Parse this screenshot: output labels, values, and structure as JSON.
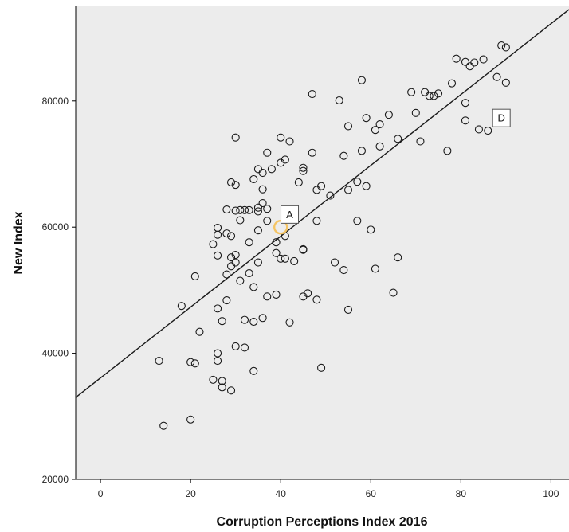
{
  "chart_data": {
    "type": "scatter",
    "title": "",
    "xlabel": "Corruption Perceptions Index 2016",
    "ylabel": "New Index",
    "xlim": [
      -5.5,
      104
    ],
    "ylim": [
      20000,
      95000
    ],
    "x_ticks": [
      0,
      20,
      40,
      60,
      80,
      100
    ],
    "y_ticks": [
      20000,
      40000,
      60000,
      80000
    ],
    "x_tick_labels": [
      "0",
      "20",
      "40",
      "60",
      "80",
      "100"
    ],
    "y_tick_labels": [
      "20000",
      "40000",
      "60000",
      "80000"
    ],
    "grid": false,
    "plot_background": "#ececec",
    "marker_color": "#1a1a1a",
    "highlight_color": "#f5c463",
    "fit_line": {
      "x": [
        -5.5,
        104
      ],
      "y": [
        33000,
        94500
      ],
      "color": "#1a1a1a"
    },
    "highlight_point": {
      "x": 40,
      "y": 60000
    },
    "annotations": [
      {
        "label": "A",
        "x": 42,
        "y": 62000
      },
      {
        "label": "D",
        "x": 89,
        "y": 77300
      }
    ],
    "points": [
      [
        13,
        38800
      ],
      [
        14,
        28500
      ],
      [
        18,
        47500
      ],
      [
        20,
        29500
      ],
      [
        20,
        38600
      ],
      [
        21,
        38400
      ],
      [
        21,
        52200
      ],
      [
        22,
        43400
      ],
      [
        25,
        35800
      ],
      [
        25,
        57300
      ],
      [
        26,
        40000
      ],
      [
        26,
        38800
      ],
      [
        26,
        47100
      ],
      [
        26,
        55500
      ],
      [
        26,
        58800
      ],
      [
        26,
        59900
      ],
      [
        27,
        35600
      ],
      [
        27,
        34600
      ],
      [
        27,
        45100
      ],
      [
        28,
        48400
      ],
      [
        28,
        52500
      ],
      [
        28,
        59000
      ],
      [
        28,
        62800
      ],
      [
        29,
        34100
      ],
      [
        29,
        53800
      ],
      [
        29,
        55200
      ],
      [
        29,
        58600
      ],
      [
        29,
        67100
      ],
      [
        30,
        41100
      ],
      [
        30,
        54400
      ],
      [
        30,
        55600
      ],
      [
        30,
        66700
      ],
      [
        30,
        62600
      ],
      [
        30,
        74200
      ],
      [
        31,
        51500
      ],
      [
        31,
        61100
      ],
      [
        31,
        62700
      ],
      [
        32,
        45300
      ],
      [
        32,
        62700
      ],
      [
        32,
        40900
      ],
      [
        33,
        52700
      ],
      [
        33,
        62700
      ],
      [
        33,
        57600
      ],
      [
        34,
        45000
      ],
      [
        34,
        37200
      ],
      [
        34,
        50500
      ],
      [
        34,
        67600
      ],
      [
        35,
        54400
      ],
      [
        35,
        59500
      ],
      [
        35,
        62500
      ],
      [
        35,
        63100
      ],
      [
        35,
        69200
      ],
      [
        36,
        45600
      ],
      [
        36,
        63800
      ],
      [
        36,
        68600
      ],
      [
        36,
        66000
      ],
      [
        37,
        49000
      ],
      [
        37,
        61000
      ],
      [
        37,
        62900
      ],
      [
        37,
        71800
      ],
      [
        38,
        69200
      ],
      [
        39,
        57600
      ],
      [
        39,
        55900
      ],
      [
        39,
        49300
      ],
      [
        40,
        74200
      ],
      [
        40,
        70200
      ],
      [
        40,
        55000
      ],
      [
        41,
        58600
      ],
      [
        41,
        70700
      ],
      [
        41,
        55000
      ],
      [
        42,
        73600
      ],
      [
        42,
        44900
      ],
      [
        43,
        54600
      ],
      [
        44,
        67100
      ],
      [
        45,
        68900
      ],
      [
        45,
        69400
      ],
      [
        45,
        56400
      ],
      [
        45,
        56500
      ],
      [
        45,
        49000
      ],
      [
        46,
        49500
      ],
      [
        47,
        81100
      ],
      [
        47,
        71800
      ],
      [
        48,
        48500
      ],
      [
        48,
        61000
      ],
      [
        48,
        65900
      ],
      [
        49,
        66500
      ],
      [
        49,
        37700
      ],
      [
        51,
        65000
      ],
      [
        52,
        54400
      ],
      [
        53,
        80100
      ],
      [
        54,
        71300
      ],
      [
        54,
        53200
      ],
      [
        55,
        76000
      ],
      [
        55,
        65900
      ],
      [
        55,
        46900
      ],
      [
        57,
        61000
      ],
      [
        57,
        67200
      ],
      [
        58,
        83300
      ],
      [
        58,
        72100
      ],
      [
        59,
        77300
      ],
      [
        59,
        66500
      ],
      [
        60,
        59600
      ],
      [
        61,
        53400
      ],
      [
        61,
        75400
      ],
      [
        62,
        72800
      ],
      [
        62,
        76300
      ],
      [
        64,
        77800
      ],
      [
        65,
        49600
      ],
      [
        66,
        55200
      ],
      [
        66,
        74000
      ],
      [
        69,
        81400
      ],
      [
        70,
        78100
      ],
      [
        71,
        73600
      ],
      [
        72,
        81400
      ],
      [
        73,
        80800
      ],
      [
        74,
        80800
      ],
      [
        75,
        81200
      ],
      [
        77,
        72100
      ],
      [
        78,
        82800
      ],
      [
        79,
        86700
      ],
      [
        81,
        76900
      ],
      [
        81,
        79700
      ],
      [
        81,
        86200
      ],
      [
        82,
        85500
      ],
      [
        83,
        86100
      ],
      [
        84,
        75500
      ],
      [
        85,
        86600
      ],
      [
        86,
        75300
      ],
      [
        88,
        83800
      ],
      [
        89,
        88800
      ],
      [
        90,
        88500
      ],
      [
        90,
        82900
      ]
    ]
  }
}
